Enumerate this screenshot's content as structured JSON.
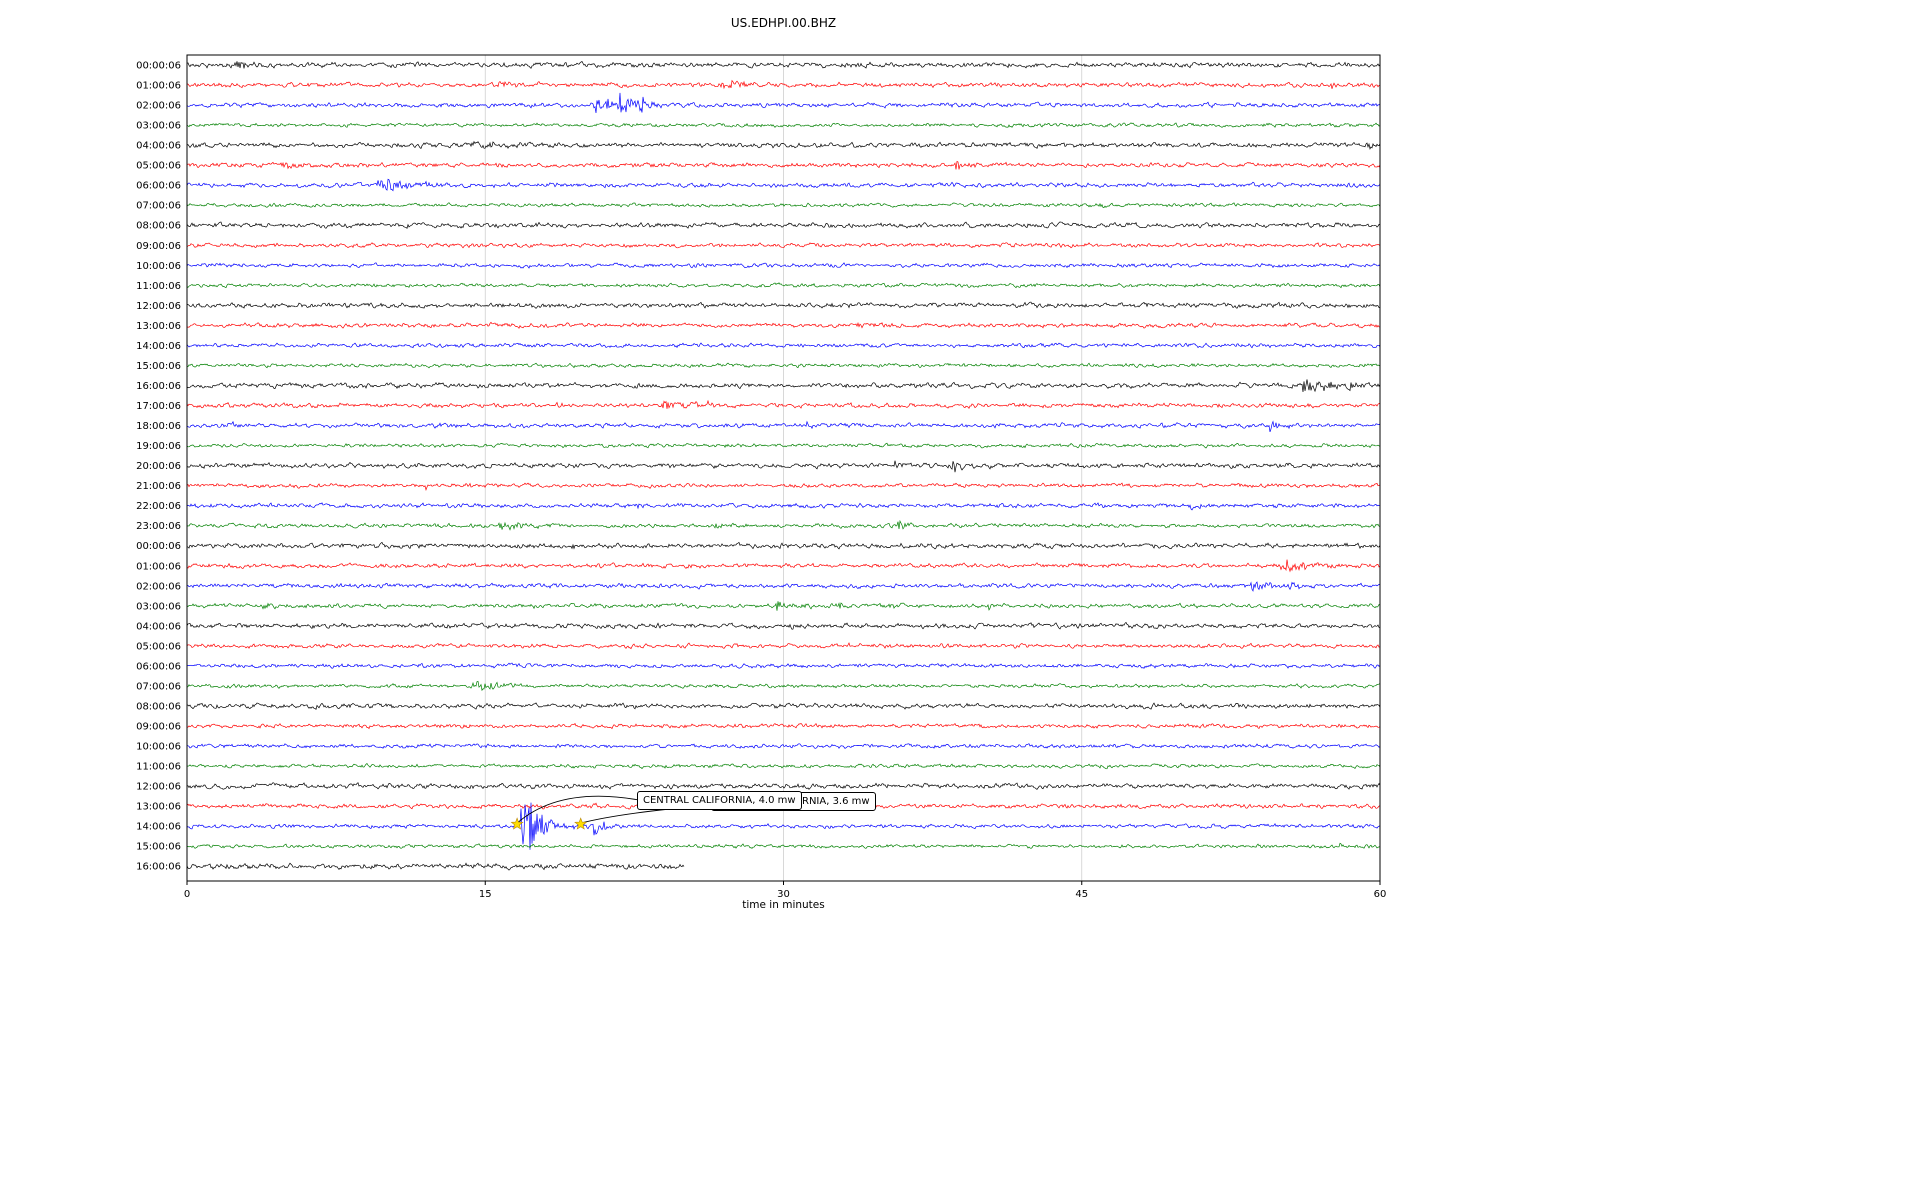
{
  "title": "US.EDHPI.00.BHZ",
  "xlabel": "time in minutes",
  "annotations": [
    {
      "text": "CENTRAL CALIFORNIA, 4.0 mw",
      "points_to_minute": 16.6,
      "points_to_row": "14:00:06"
    },
    {
      "text": "CENTRAL CALIFORNIA, 3.6 mw",
      "points_to_minute": 19.8,
      "points_to_row": "14:00:06"
    }
  ],
  "colors": {
    "black": "#000000",
    "red": "#ff0000",
    "blue": "#0000ff",
    "green": "#008000",
    "grid": "#cfcfcf",
    "star_fill": "#ffdd00",
    "star_edge": "#b8860b"
  },
  "chart_data": {
    "type": "line",
    "subtype": "helicorder-dayplot",
    "title": "US.EDHPI.00.BHZ",
    "xlabel": "time in minutes",
    "xlim": [
      0,
      60
    ],
    "x_ticks": [
      0,
      15,
      30,
      45,
      60
    ],
    "x_gridlines": [
      15,
      30,
      45
    ],
    "grid": true,
    "rows_note": "each row = one hour of seismic trace; bursts = [onset_minute, duration_decay_min, amplitude_px]",
    "rows": [
      {
        "label": "00:00:06",
        "color": "black",
        "noise": 1.2,
        "bursts": [
          [
            2.5,
            0.8,
            4
          ],
          [
            11.2,
            0.3,
            2.5
          ]
        ]
      },
      {
        "label": "01:00:06",
        "color": "red",
        "noise": 1.1,
        "bursts": [
          [
            15.8,
            1.0,
            3
          ],
          [
            20.8,
            0.4,
            2.5
          ],
          [
            27.1,
            1.8,
            4
          ],
          [
            57.5,
            0.15,
            7
          ]
        ]
      },
      {
        "label": "02:00:06",
        "color": "blue",
        "noise": 1.1,
        "bursts": [
          [
            20.6,
            0.8,
            9
          ],
          [
            21.8,
            0.8,
            11
          ],
          [
            22.8,
            0.5,
            7
          ]
        ]
      },
      {
        "label": "03:00:06",
        "color": "green",
        "noise": 0.9,
        "bursts": []
      },
      {
        "label": "04:00:06",
        "color": "black",
        "noise": 1.2,
        "bursts": [
          [
            14.8,
            5.0,
            2.2
          ],
          [
            59.3,
            0.3,
            4
          ]
        ]
      },
      {
        "label": "05:00:06",
        "color": "red",
        "noise": 1.1,
        "bursts": [
          [
            4.8,
            1.0,
            2.5
          ],
          [
            8.7,
            0.5,
            2
          ],
          [
            38.7,
            1.0,
            4
          ]
        ]
      },
      {
        "label": "06:00:06",
        "color": "blue",
        "noise": 1.1,
        "bursts": [
          [
            9.8,
            1.6,
            6
          ]
        ]
      },
      {
        "label": "07:00:06",
        "color": "green",
        "noise": 0.9,
        "bursts": [
          [
            45.9,
            0.3,
            3
          ]
        ]
      },
      {
        "label": "08:00:06",
        "color": "black",
        "noise": 1.2,
        "bursts": []
      },
      {
        "label": "09:00:06",
        "color": "red",
        "noise": 1.0,
        "bursts": []
      },
      {
        "label": "10:00:06",
        "color": "blue",
        "noise": 1.0,
        "bursts": [
          [
            16.8,
            0.3,
            2
          ]
        ]
      },
      {
        "label": "11:00:06",
        "color": "green",
        "noise": 0.9,
        "bursts": []
      },
      {
        "label": "12:00:06",
        "color": "black",
        "noise": 1.2,
        "bursts": []
      },
      {
        "label": "13:00:06",
        "color": "red",
        "noise": 1.1,
        "bursts": [
          [
            18.7,
            0.4,
            2.5
          ],
          [
            33.8,
            0.5,
            2.5
          ]
        ]
      },
      {
        "label": "14:00:06",
        "color": "blue",
        "noise": 1.0,
        "bursts": []
      },
      {
        "label": "15:00:06",
        "color": "green",
        "noise": 0.9,
        "bursts": []
      },
      {
        "label": "16:00:06",
        "color": "black",
        "noise": 1.2,
        "bursts": [
          [
            56.2,
            1.2,
            7
          ],
          [
            58.5,
            0.6,
            4
          ]
        ]
      },
      {
        "label": "17:00:06",
        "color": "red",
        "noise": 1.1,
        "bursts": [
          [
            18.6,
            0.3,
            3
          ],
          [
            24.0,
            1.2,
            4
          ],
          [
            26.2,
            0.3,
            3.5
          ]
        ]
      },
      {
        "label": "18:00:06",
        "color": "blue",
        "noise": 1.1,
        "bursts": [
          [
            2.1,
            0.6,
            3
          ],
          [
            31.1,
            0.3,
            3.5
          ],
          [
            54.5,
            0.6,
            4.5
          ]
        ]
      },
      {
        "label": "19:00:06",
        "color": "green",
        "noise": 0.9,
        "bursts": []
      },
      {
        "label": "20:00:06",
        "color": "black",
        "noise": 1.2,
        "bursts": [
          [
            35.6,
            0.2,
            6
          ],
          [
            38.5,
            0.6,
            5
          ]
        ]
      },
      {
        "label": "21:00:06",
        "color": "red",
        "noise": 1.0,
        "bursts": [
          [
            12.0,
            0.2,
            3
          ],
          [
            14.0,
            0.3,
            3
          ]
        ]
      },
      {
        "label": "22:00:06",
        "color": "blue",
        "noise": 1.1,
        "bursts": [
          [
            22.6,
            0.4,
            4.5
          ],
          [
            26.3,
            0.3,
            3
          ],
          [
            50.4,
            0.3,
            3
          ]
        ]
      },
      {
        "label": "23:00:06",
        "color": "green",
        "noise": 1.0,
        "bursts": [
          [
            13.0,
            0.3,
            3
          ],
          [
            15.8,
            1.2,
            4
          ],
          [
            26.6,
            0.3,
            5
          ],
          [
            35.8,
            0.4,
            5
          ]
        ]
      },
      {
        "label": "00:00:06",
        "color": "black",
        "noise": 1.2,
        "bursts": [
          [
            19.4,
            0.3,
            3
          ]
        ]
      },
      {
        "label": "01:00:06",
        "color": "red",
        "noise": 1.1,
        "bursts": [
          [
            55.2,
            1.4,
            6
          ],
          [
            57.3,
            0.4,
            5
          ]
        ]
      },
      {
        "label": "02:00:06",
        "color": "blue",
        "noise": 1.1,
        "bursts": [
          [
            53.6,
            1.0,
            5
          ],
          [
            55.4,
            0.5,
            4
          ]
        ]
      },
      {
        "label": "03:00:06",
        "color": "green",
        "noise": 1.0,
        "bursts": [
          [
            3.8,
            0.5,
            4
          ],
          [
            6.6,
            0.3,
            4
          ],
          [
            16.7,
            0.3,
            4.5
          ],
          [
            29.7,
            0.8,
            4
          ],
          [
            32.8,
            0.3,
            4
          ],
          [
            35.3,
            0.3,
            3
          ],
          [
            40.3,
            0.3,
            3
          ]
        ]
      },
      {
        "label": "04:00:06",
        "color": "black",
        "noise": 1.2,
        "bursts": [
          [
            30.3,
            0.3,
            2.5
          ]
        ]
      },
      {
        "label": "05:00:06",
        "color": "red",
        "noise": 1.0,
        "bursts": [
          [
            33.3,
            0.2,
            3
          ]
        ]
      },
      {
        "label": "06:00:06",
        "color": "blue",
        "noise": 1.0,
        "bursts": []
      },
      {
        "label": "07:00:06",
        "color": "green",
        "noise": 0.9,
        "bursts": [
          [
            14.5,
            1.0,
            6
          ]
        ]
      },
      {
        "label": "08:00:06",
        "color": "black",
        "noise": 1.2,
        "bursts": []
      },
      {
        "label": "09:00:06",
        "color": "red",
        "noise": 1.0,
        "bursts": []
      },
      {
        "label": "10:00:06",
        "color": "blue",
        "noise": 1.0,
        "bursts": []
      },
      {
        "label": "11:00:06",
        "color": "green",
        "noise": 0.9,
        "bursts": []
      },
      {
        "label": "12:00:06",
        "color": "black",
        "noise": 1.2,
        "bursts": []
      },
      {
        "label": "13:00:06",
        "color": "red",
        "noise": 1.1,
        "bursts": []
      },
      {
        "label": "14:00:06",
        "color": "blue",
        "noise": 1.0,
        "bursts": [
          [
            16.9,
            0.9,
            38
          ],
          [
            20.4,
            0.6,
            10
          ]
        ]
      },
      {
        "label": "15:00:06",
        "color": "green",
        "noise": 0.9,
        "bursts": [
          [
            58.0,
            0.2,
            3
          ]
        ]
      },
      {
        "label": "16:00:06",
        "color": "black",
        "noise": 1.4,
        "bursts": [],
        "end_min": 25
      }
    ],
    "event": {
      "region": "CENTRAL CALIFORNIA",
      "magnitudes": [
        "4.0 mw",
        "3.6 mw"
      ],
      "row_index": 38,
      "row_label": "14:00:06",
      "stars_min": [
        16.6,
        19.8
      ]
    }
  }
}
